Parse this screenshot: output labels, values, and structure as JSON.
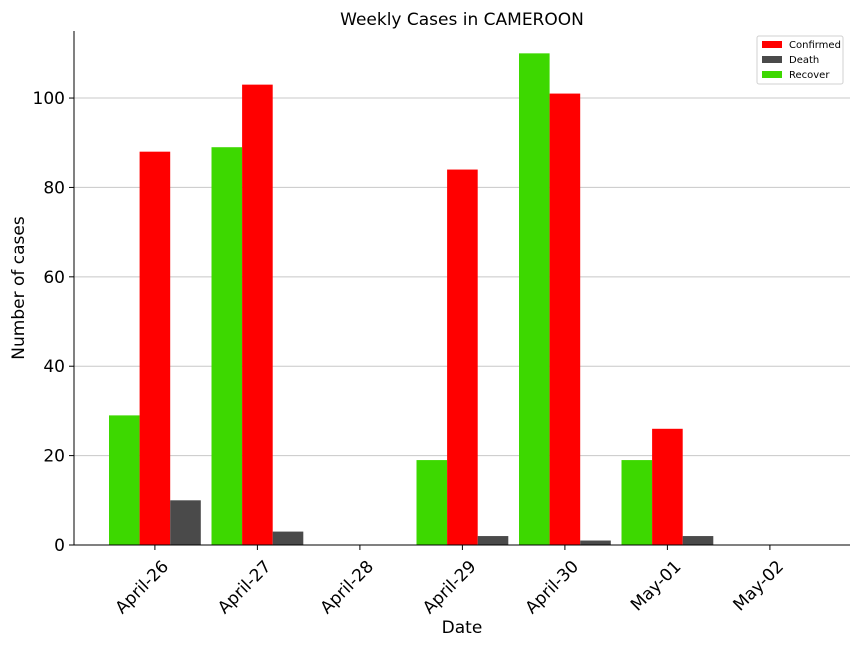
{
  "chart_data": {
    "type": "bar",
    "title": "Weekly Cases in CAMEROON",
    "xlabel": "Date",
    "ylabel": "Number of cases",
    "categories": [
      "April-26",
      "April-27",
      "April-28",
      "April-29",
      "April-30",
      "May-01",
      "May-02"
    ],
    "series": [
      {
        "name": "Recover",
        "color": "#3dd800",
        "values": [
          29,
          89,
          0,
          19,
          110,
          19,
          0
        ]
      },
      {
        "name": "Confirmed",
        "color": "#ff0000",
        "values": [
          88,
          103,
          0,
          84,
          101,
          26,
          0
        ]
      },
      {
        "name": "Death",
        "color": "#4a4a4a",
        "values": [
          10,
          3,
          0,
          2,
          1,
          2,
          0
        ]
      }
    ],
    "legend_order": [
      "Confirmed",
      "Death",
      "Recover"
    ],
    "legend_position": "top-right",
    "ylim": [
      0,
      115
    ],
    "yticks": [
      0,
      20,
      40,
      60,
      80,
      100
    ],
    "grid": "y-only"
  }
}
